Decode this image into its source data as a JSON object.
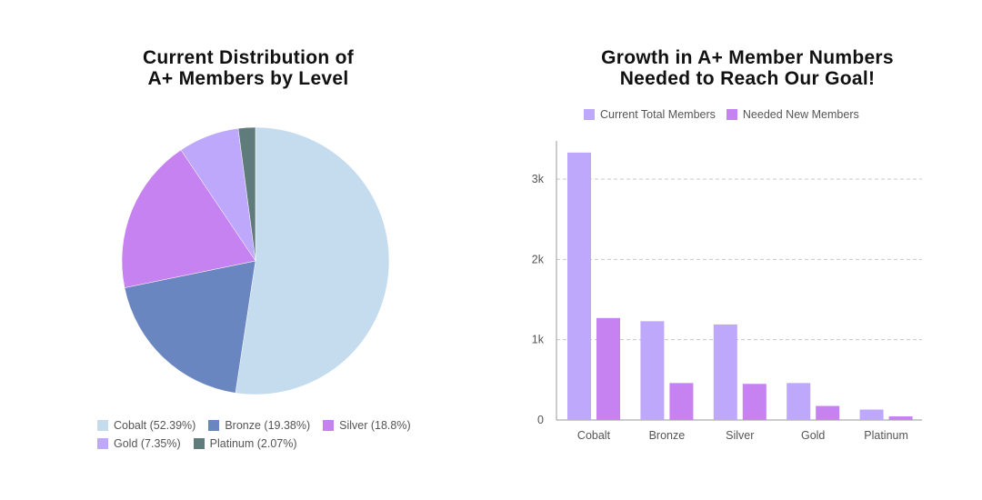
{
  "chart_data": [
    {
      "type": "pie",
      "title": [
        "Current Distribution of",
        "A+ Members by Level"
      ],
      "slices": [
        {
          "label": "Cobalt",
          "value": 52.39,
          "legend": "Cobalt (52.39%)",
          "color": "#c5dcef"
        },
        {
          "label": "Bronze",
          "value": 19.38,
          "legend": "Bronze (19.38%)",
          "color": "#6a86c1"
        },
        {
          "label": "Silver",
          "value": 18.8,
          "legend": "Silver (18.8%)",
          "color": "#c682f0"
        },
        {
          "label": "Gold",
          "value": 7.35,
          "legend": "Gold (7.35%)",
          "color": "#bda8fc"
        },
        {
          "label": "Platinum",
          "value": 2.07,
          "legend": "Platinum (2.07%)",
          "color": "#5f7b7c"
        }
      ]
    },
    {
      "type": "bar",
      "title": [
        "Growth in A+ Member Numbers",
        "Needed to Reach Our Goal!"
      ],
      "categories": [
        "Cobalt",
        "Bronze",
        "Silver",
        "Gold",
        "Platinum"
      ],
      "series": [
        {
          "name": "Current Total Members",
          "values": [
            3330,
            1230,
            1190,
            460,
            130
          ],
          "color": "#bda8fc"
        },
        {
          "name": "Needed New Members",
          "values": [
            1270,
            460,
            450,
            175,
            45
          ],
          "color": "#c682f0"
        }
      ],
      "ylim": [
        0,
        3500
      ],
      "yticks": [
        0,
        1000,
        2000,
        3000
      ],
      "ytick_labels": [
        "0",
        "1k",
        "2k",
        "3k"
      ],
      "grid": true,
      "legend": "top"
    }
  ]
}
